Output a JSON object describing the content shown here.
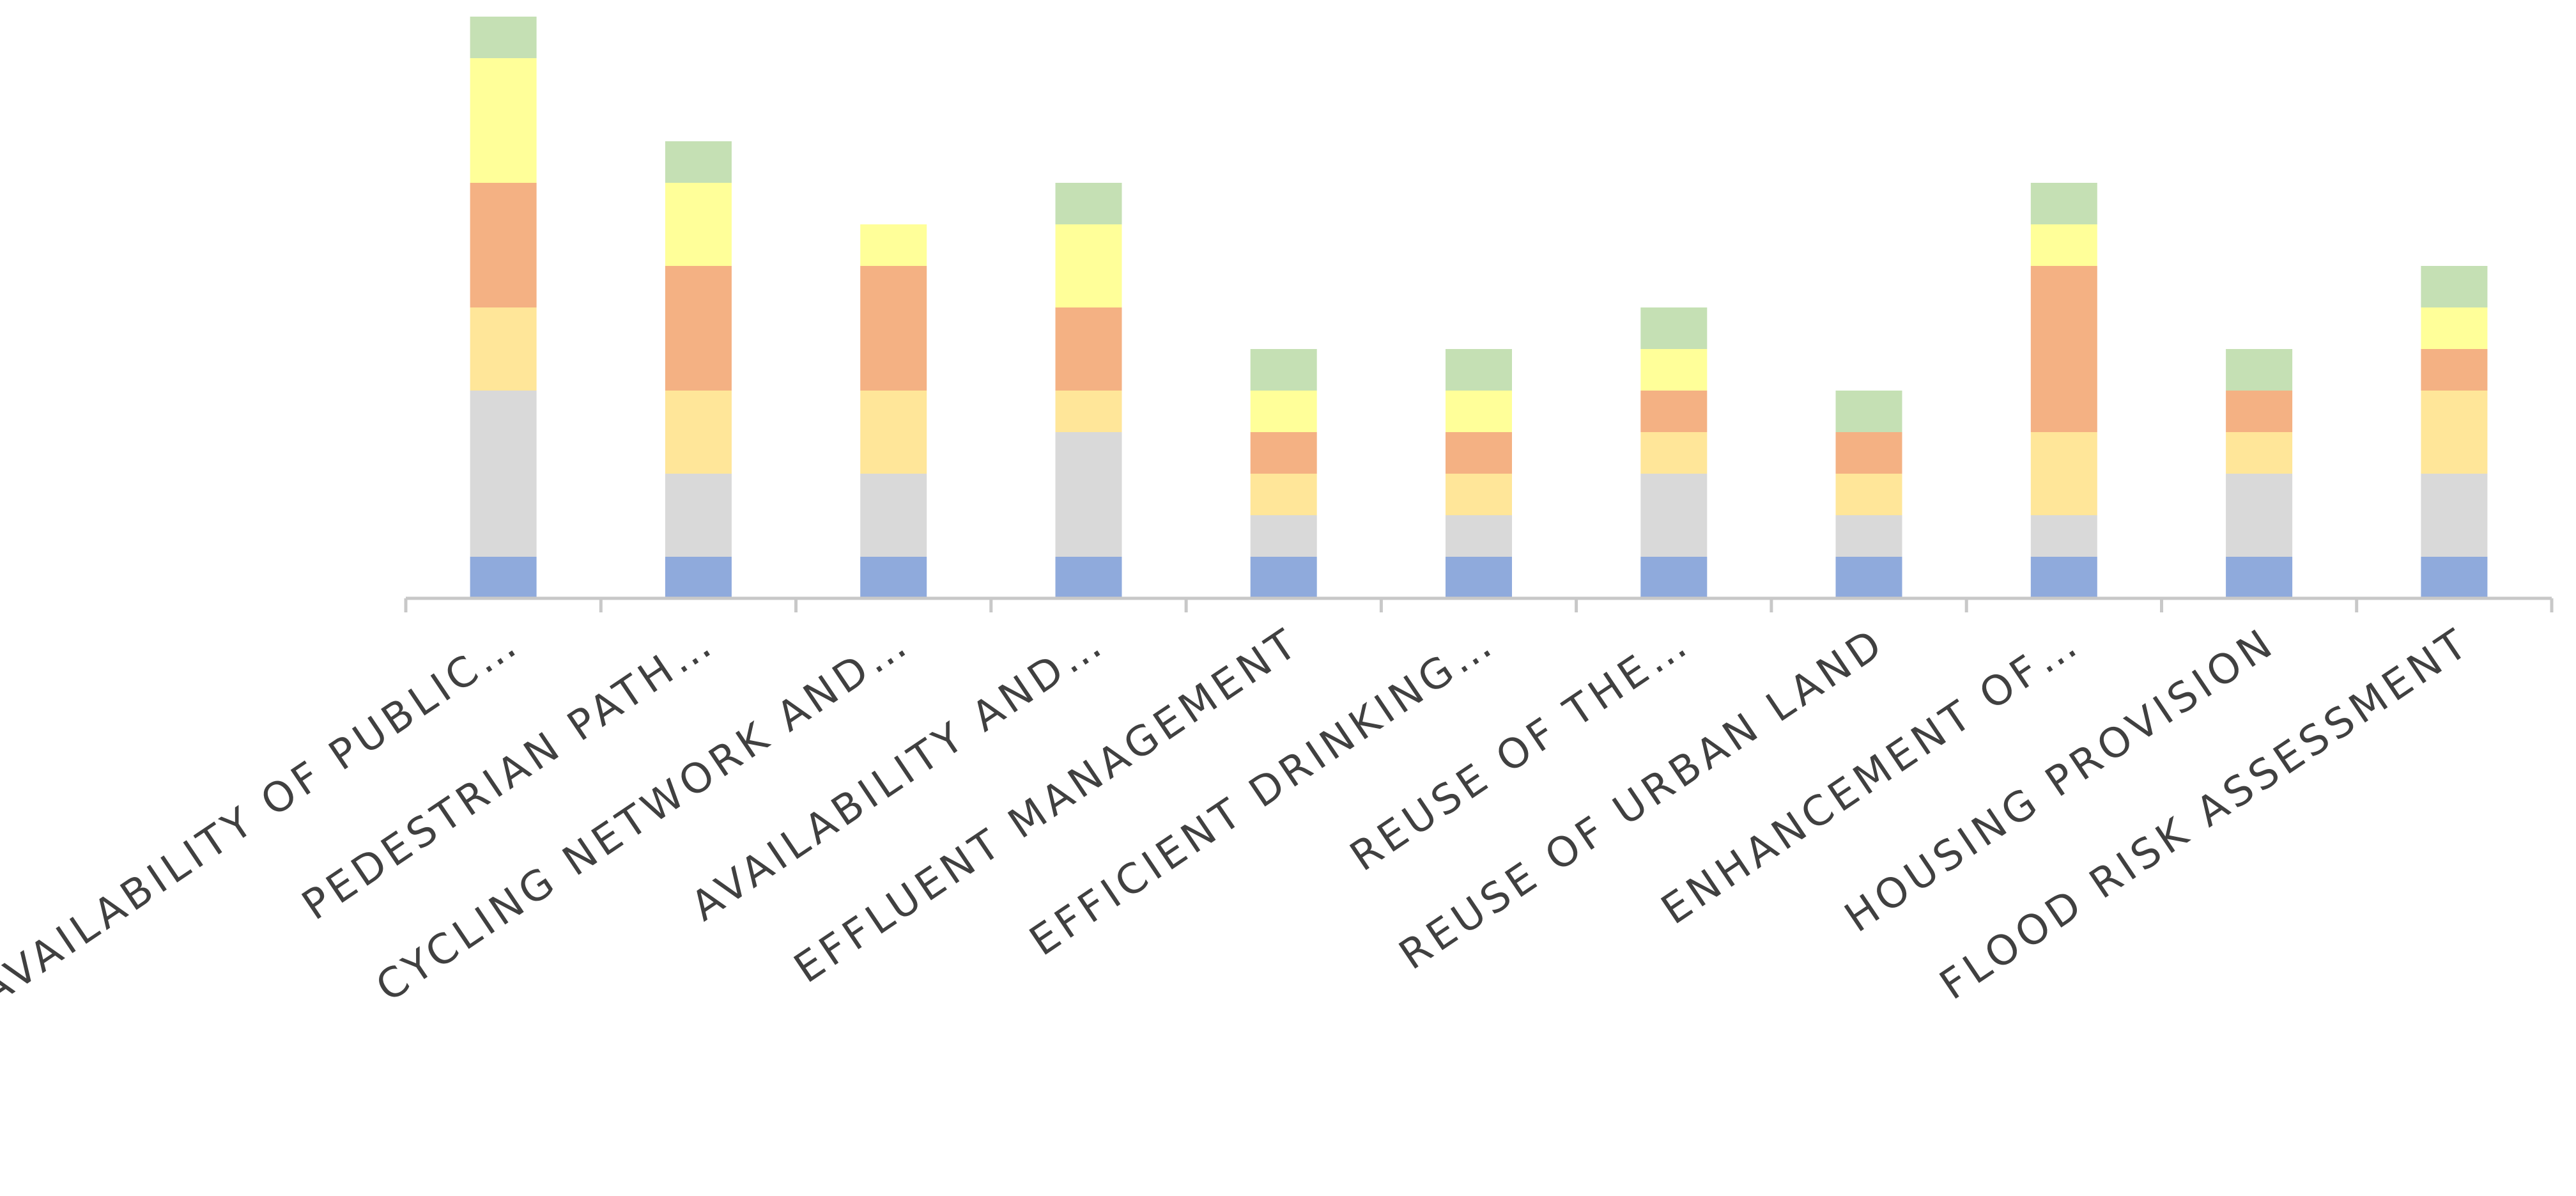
{
  "chart_data": {
    "type": "bar",
    "stacked": true,
    "orientation": "vertical",
    "categories": [
      "AVAILABILITY OF PUBLIC…",
      "PEDESTRIAN PATH…",
      "CYCLING NETWORK AND…",
      "AVAILABILITY AND…",
      "EFFLUENT MANAGEMENT",
      "EFFICIENT DRINKING…",
      "REUSE OF THE…",
      "REUSE OF URBAN LAND",
      "ENHANCEMENT OF…",
      "HOUSING PROVISION",
      "FLOOD RISK ASSESSMENT"
    ],
    "series": [
      {
        "color": "#8faadc",
        "values": [
          1,
          1,
          1,
          1,
          1,
          1,
          1,
          1,
          1,
          1,
          1
        ]
      },
      {
        "color": "#d9d9d9",
        "values": [
          4,
          2,
          2,
          3,
          1,
          1,
          2,
          1,
          1,
          2,
          2
        ]
      },
      {
        "color": "#ffe699",
        "values": [
          2,
          2,
          2,
          1,
          1,
          1,
          1,
          1,
          2,
          1,
          2
        ]
      },
      {
        "color": "#f4b183",
        "values": [
          3,
          3,
          3,
          2,
          1,
          1,
          1,
          1,
          4,
          1,
          1
        ]
      },
      {
        "color": "#ffff99",
        "values": [
          3,
          2,
          1,
          2,
          1,
          1,
          1,
          0,
          1,
          0,
          1
        ]
      },
      {
        "color": "#c5e0b4",
        "values": [
          1,
          1,
          0,
          1,
          1,
          1,
          1,
          1,
          1,
          1,
          1
        ]
      }
    ],
    "title": "",
    "xlabel": "",
    "ylabel": "",
    "ylim": [
      0,
      14
    ],
    "legend": "none",
    "grid": false
  }
}
